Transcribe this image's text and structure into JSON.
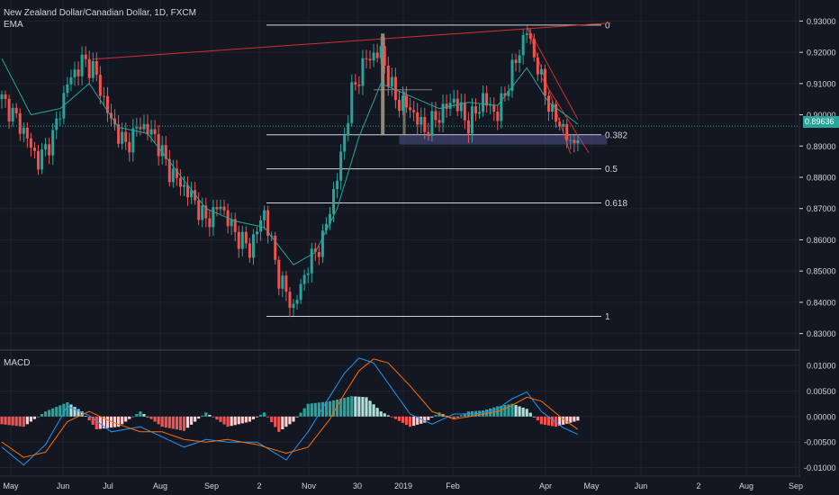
{
  "chart_data": {
    "type": "candlestick",
    "title": "New Zealand Dollar/Canadian Dollar, 1D, FXCM",
    "indicator_label": "EMA",
    "last_price": "0.89636",
    "price_axis": {
      "range": [
        0.825,
        0.935
      ],
      "ticks": [
        "0.93000",
        "0.92000",
        "0.91000",
        "0.90000",
        "0.89000",
        "0.88000",
        "0.87000",
        "0.86000",
        "0.85000",
        "0.84000",
        "0.83000"
      ]
    },
    "time_axis": {
      "labels": [
        "May",
        "Jun",
        "Jul",
        "Aug",
        "Sep",
        "2",
        "Nov",
        "30",
        "2019",
        "Feb",
        "Apr",
        "May",
        "Jun",
        "2",
        "Aug",
        "Sep"
      ]
    },
    "fibonacci": [
      {
        "level": "0",
        "price": 0.9287
      },
      {
        "level": "0.382",
        "price": 0.8936
      },
      {
        "level": "0.5",
        "price": 0.8827
      },
      {
        "level": "0.618",
        "price": 0.8718
      },
      {
        "level": "1",
        "price": 0.8355
      }
    ],
    "price_path": [
      [
        0,
        0.905
      ],
      [
        5,
        0.897
      ],
      [
        10,
        0.885
      ],
      [
        14,
        0.893
      ],
      [
        18,
        0.91
      ],
      [
        22,
        0.917
      ],
      [
        25,
        0.915
      ],
      [
        30,
        0.898
      ],
      [
        34,
        0.89
      ],
      [
        38,
        0.897
      ],
      [
        42,
        0.893
      ],
      [
        46,
        0.882
      ],
      [
        52,
        0.874
      ],
      [
        56,
        0.866
      ],
      [
        60,
        0.871
      ],
      [
        64,
        0.862
      ],
      [
        68,
        0.857
      ],
      [
        72,
        0.869
      ],
      [
        76,
        0.848
      ],
      [
        80,
        0.838
      ],
      [
        84,
        0.852
      ],
      [
        88,
        0.86
      ],
      [
        92,
        0.88
      ],
      [
        96,
        0.907
      ],
      [
        100,
        0.918
      ],
      [
        104,
        0.92
      ],
      [
        106,
        0.912
      ],
      [
        108,
        0.905
      ],
      [
        112,
        0.902
      ],
      [
        116,
        0.895
      ],
      [
        120,
        0.9
      ],
      [
        124,
        0.905
      ],
      [
        128,
        0.897
      ],
      [
        132,
        0.905
      ],
      [
        136,
        0.9
      ],
      [
        140,
        0.914
      ],
      [
        143,
        0.924
      ],
      [
        144,
        0.927
      ],
      [
        148,
        0.911
      ],
      [
        151,
        0.9
      ],
      [
        154,
        0.896
      ],
      [
        156,
        0.89
      ],
      [
        158,
        0.894
      ]
    ],
    "ema_path": [
      [
        0,
        0.918
      ],
      [
        8,
        0.9
      ],
      [
        16,
        0.902
      ],
      [
        24,
        0.91
      ],
      [
        32,
        0.896
      ],
      [
        40,
        0.894
      ],
      [
        48,
        0.882
      ],
      [
        56,
        0.87
      ],
      [
        64,
        0.866
      ],
      [
        72,
        0.864
      ],
      [
        80,
        0.852
      ],
      [
        86,
        0.856
      ],
      [
        92,
        0.87
      ],
      [
        98,
        0.893
      ],
      [
        104,
        0.91
      ],
      [
        112,
        0.906
      ],
      [
        120,
        0.902
      ],
      [
        128,
        0.904
      ],
      [
        136,
        0.903
      ],
      [
        144,
        0.915
      ],
      [
        150,
        0.904
      ],
      [
        158,
        0.897
      ]
    ],
    "macd": {
      "label": "MACD",
      "range": [
        -0.0115,
        0.0125
      ],
      "ticks": [
        "0.01000",
        "0.00500",
        "0.00000",
        "-0.00500",
        "-0.01000"
      ],
      "histogram_path": [
        [
          0,
          -0.0015
        ],
        [
          6,
          -0.002
        ],
        [
          12,
          0.001
        ],
        [
          18,
          0.0028
        ],
        [
          22,
          0.001
        ],
        [
          26,
          -0.0025
        ],
        [
          32,
          -0.002
        ],
        [
          38,
          0.001
        ],
        [
          44,
          -0.002
        ],
        [
          50,
          -0.0028
        ],
        [
          56,
          0.0008
        ],
        [
          62,
          -0.002
        ],
        [
          68,
          -0.001
        ],
        [
          72,
          0.0008
        ],
        [
          76,
          -0.003
        ],
        [
          80,
          -0.001
        ],
        [
          84,
          0.0025
        ],
        [
          90,
          0.003
        ],
        [
          96,
          0.004
        ],
        [
          100,
          0.0038
        ],
        [
          104,
          0.001
        ],
        [
          108,
          -0.0005
        ],
        [
          112,
          -0.002
        ],
        [
          116,
          -0.0012
        ],
        [
          120,
          0.0008
        ],
        [
          124,
          -0.0005
        ],
        [
          128,
          0.001
        ],
        [
          132,
          0.0012
        ],
        [
          136,
          0.002
        ],
        [
          140,
          0.0025
        ],
        [
          144,
          0.0015
        ],
        [
          148,
          -0.0015
        ],
        [
          152,
          -0.002
        ],
        [
          156,
          -0.0012
        ],
        [
          158,
          -0.0008
        ]
      ],
      "macd_path": [
        [
          0,
          -0.006
        ],
        [
          6,
          -0.0095
        ],
        [
          12,
          -0.0055
        ],
        [
          18,
          0.002
        ],
        [
          24,
          0.0002
        ],
        [
          30,
          -0.003
        ],
        [
          38,
          -0.002
        ],
        [
          44,
          -0.004
        ],
        [
          50,
          -0.006
        ],
        [
          56,
          -0.0045
        ],
        [
          62,
          -0.005
        ],
        [
          70,
          -0.005
        ],
        [
          78,
          -0.0085
        ],
        [
          84,
          -0.003
        ],
        [
          90,
          0.004
        ],
        [
          94,
          0.0085
        ],
        [
          98,
          0.0115
        ],
        [
          102,
          0.0105
        ],
        [
          106,
          0.0065
        ],
        [
          112,
          0.0005
        ],
        [
          118,
          -0.0015
        ],
        [
          124,
          0.0005
        ],
        [
          130,
          0.0005
        ],
        [
          136,
          0.0015
        ],
        [
          140,
          0.0035
        ],
        [
          144,
          0.0048
        ],
        [
          148,
          0.001
        ],
        [
          154,
          -0.0022
        ],
        [
          158,
          -0.0035
        ]
      ],
      "signal_path": [
        [
          0,
          -0.005
        ],
        [
          6,
          -0.008
        ],
        [
          12,
          -0.007
        ],
        [
          18,
          -0.001
        ],
        [
          24,
          0.001
        ],
        [
          30,
          -0.001
        ],
        [
          38,
          -0.003
        ],
        [
          44,
          -0.003
        ],
        [
          50,
          -0.0045
        ],
        [
          56,
          -0.005
        ],
        [
          62,
          -0.0045
        ],
        [
          70,
          -0.0055
        ],
        [
          78,
          -0.0072
        ],
        [
          84,
          -0.006
        ],
        [
          90,
          -0.0005
        ],
        [
          94,
          0.0045
        ],
        [
          98,
          0.009
        ],
        [
          102,
          0.0113
        ],
        [
          106,
          0.0105
        ],
        [
          112,
          0.006
        ],
        [
          118,
          0.001
        ],
        [
          124,
          -0.0005
        ],
        [
          130,
          0.0002
        ],
        [
          136,
          0.001
        ],
        [
          140,
          0.0022
        ],
        [
          144,
          0.0038
        ],
        [
          148,
          0.003
        ],
        [
          154,
          -0.0005
        ],
        [
          158,
          -0.0025
        ]
      ]
    }
  },
  "colors": {
    "background": "#131722",
    "grid": "#1e222d",
    "up": "#26a69a",
    "down": "#ef5350",
    "ema": "#26a69a",
    "trendline": "#d32f2f",
    "fib": "#d1d4dc",
    "macd_line": "#2196f3",
    "signal_line": "#ff6d00",
    "axis_text": "#d1d4dc",
    "separator": "#2a2e39"
  }
}
